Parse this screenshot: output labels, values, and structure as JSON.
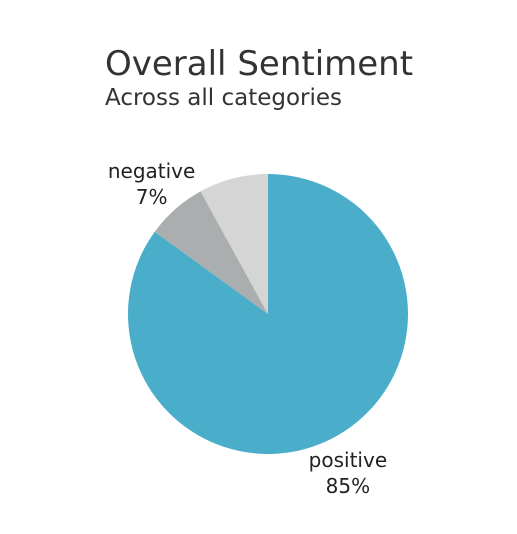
{
  "chart_data": {
    "type": "pie",
    "title": "Overall Sentiment",
    "subtitle": "Across all categories",
    "start_angle_deg": 0,
    "direction": "clockwise",
    "slices": [
      {
        "label": "positive",
        "value": 85,
        "value_text": "85%",
        "color": "#4aadc9",
        "show_label": true
      },
      {
        "label": "negative",
        "value": 7,
        "value_text": "7%",
        "color": "#abaeaf",
        "show_label": true
      },
      {
        "label": "",
        "value": 8,
        "value_text": "",
        "color": "#d5d5d5",
        "show_label": false
      }
    ]
  }
}
